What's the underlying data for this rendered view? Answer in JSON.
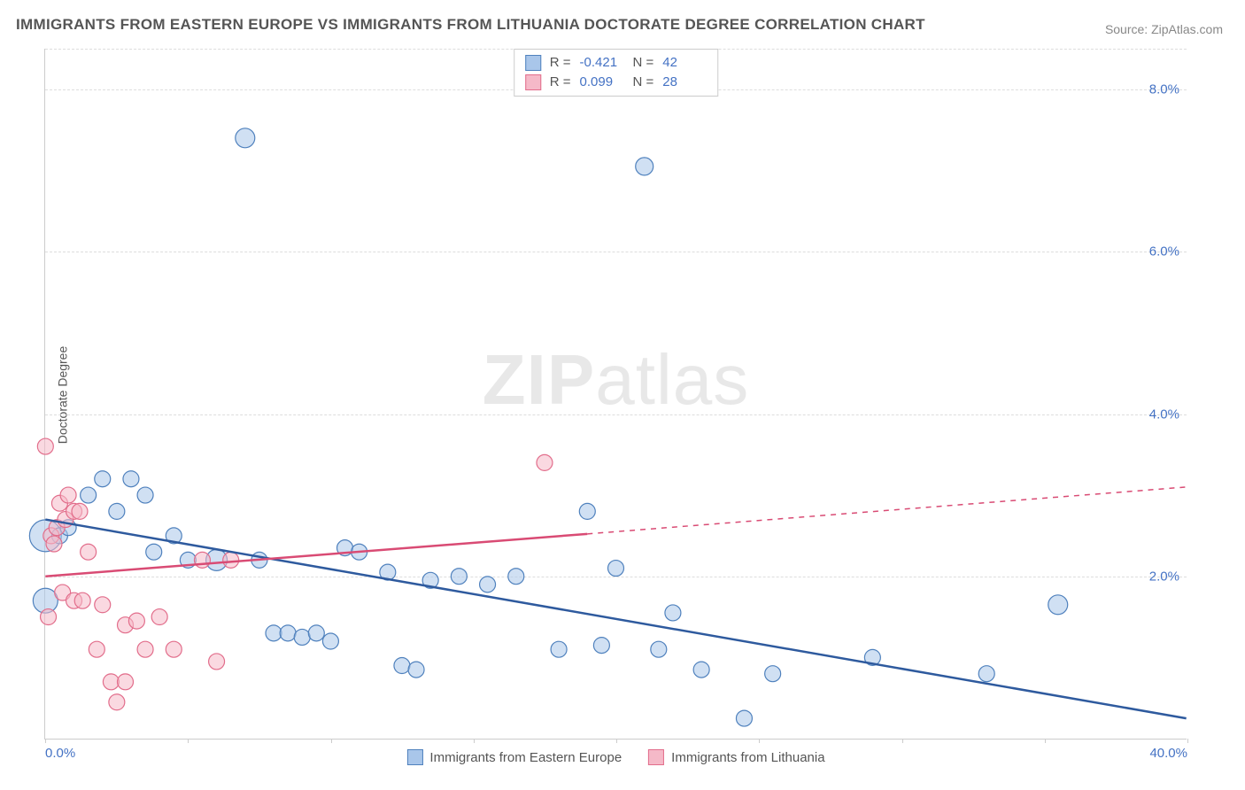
{
  "title": "IMMIGRANTS FROM EASTERN EUROPE VS IMMIGRANTS FROM LITHUANIA DOCTORATE DEGREE CORRELATION CHART",
  "source": "Source: ZipAtlas.com",
  "ylabel": "Doctorate Degree",
  "watermark_zip": "ZIP",
  "watermark_atlas": "atlas",
  "chart": {
    "type": "scatter",
    "background_color": "#ffffff",
    "grid_color": "#dddddd",
    "axis_color": "#cccccc",
    "tick_color": "#4472c4",
    "xlim": [
      0,
      40
    ],
    "ylim": [
      0,
      8.5
    ],
    "yticks": [
      2,
      4,
      6,
      8
    ],
    "ytick_labels": [
      "2.0%",
      "4.0%",
      "6.0%",
      "8.0%"
    ],
    "xtick_marks": [
      0,
      5,
      10,
      15,
      20,
      25,
      30,
      35,
      40
    ],
    "xtick_labels_shown": {
      "0": "0.0%",
      "40": "40.0%"
    },
    "series": [
      {
        "id": "eastern_europe",
        "label": "Immigrants from Eastern Europe",
        "fill": "#a9c6ea",
        "stroke": "#4f81bd",
        "line_color": "#2e5a9e",
        "marker_radius": 9,
        "fill_opacity": 0.55,
        "R": "-0.421",
        "N": "42",
        "trend": {
          "x1": 0,
          "y1": 2.7,
          "x2": 40,
          "y2": 0.25,
          "solid_until_x": 40
        },
        "points": [
          [
            0.0,
            2.5,
            18
          ],
          [
            0.0,
            1.7,
            14
          ],
          [
            0.5,
            2.5,
            9
          ],
          [
            0.8,
            2.6,
            9
          ],
          [
            1.5,
            3.0,
            9
          ],
          [
            2.0,
            3.2,
            9
          ],
          [
            2.5,
            2.8,
            9
          ],
          [
            3.0,
            3.2,
            9
          ],
          [
            3.5,
            3.0,
            9
          ],
          [
            3.8,
            2.3,
            9
          ],
          [
            4.5,
            2.5,
            9
          ],
          [
            5.0,
            2.2,
            9
          ],
          [
            6.0,
            2.2,
            12
          ],
          [
            7.0,
            7.4,
            11
          ],
          [
            7.5,
            2.2,
            9
          ],
          [
            8.0,
            1.3,
            9
          ],
          [
            8.5,
            1.3,
            9
          ],
          [
            9.0,
            1.25,
            9
          ],
          [
            9.5,
            1.3,
            9
          ],
          [
            10.0,
            1.2,
            9
          ],
          [
            10.5,
            2.35,
            9
          ],
          [
            11.0,
            2.3,
            9
          ],
          [
            12.0,
            2.05,
            9
          ],
          [
            12.5,
            0.9,
            9
          ],
          [
            13.0,
            0.85,
            9
          ],
          [
            13.5,
            1.95,
            9
          ],
          [
            14.5,
            2.0,
            9
          ],
          [
            15.5,
            1.9,
            9
          ],
          [
            16.5,
            2.0,
            9
          ],
          [
            18.0,
            1.1,
            9
          ],
          [
            19.0,
            2.8,
            9
          ],
          [
            19.5,
            1.15,
            9
          ],
          [
            20.0,
            2.1,
            9
          ],
          [
            21.0,
            7.05,
            10
          ],
          [
            21.5,
            1.1,
            9
          ],
          [
            22.0,
            1.55,
            9
          ],
          [
            23.0,
            0.85,
            9
          ],
          [
            24.5,
            0.25,
            9
          ],
          [
            25.5,
            0.8,
            9
          ],
          [
            33.0,
            0.8,
            9
          ],
          [
            35.5,
            1.65,
            11
          ],
          [
            29.0,
            1.0,
            9
          ]
        ]
      },
      {
        "id": "lithuania",
        "label": "Immigrants from Lithuania",
        "fill": "#f5b9c8",
        "stroke": "#e26d8b",
        "line_color": "#d94b74",
        "marker_radius": 9,
        "fill_opacity": 0.55,
        "R": "0.099",
        "N": "28",
        "trend": {
          "x1": 0,
          "y1": 2.0,
          "x2": 40,
          "y2": 3.1,
          "solid_until_x": 19
        },
        "points": [
          [
            0.0,
            3.6,
            9
          ],
          [
            0.2,
            2.5,
            9
          ],
          [
            0.3,
            2.4,
            9
          ],
          [
            0.4,
            2.6,
            9
          ],
          [
            0.5,
            2.9,
            9
          ],
          [
            0.6,
            1.8,
            9
          ],
          [
            0.7,
            2.7,
            9
          ],
          [
            0.8,
            3.0,
            9
          ],
          [
            1.0,
            2.8,
            9
          ],
          [
            1.2,
            2.8,
            9
          ],
          [
            1.0,
            1.7,
            9
          ],
          [
            1.3,
            1.7,
            9
          ],
          [
            1.5,
            2.3,
            9
          ],
          [
            1.8,
            1.1,
            9
          ],
          [
            2.0,
            1.65,
            9
          ],
          [
            2.3,
            0.7,
            9
          ],
          [
            2.5,
            0.45,
            9
          ],
          [
            2.8,
            1.4,
            9
          ],
          [
            2.8,
            0.7,
            9
          ],
          [
            3.2,
            1.45,
            9
          ],
          [
            3.5,
            1.1,
            9
          ],
          [
            4.0,
            1.5,
            9
          ],
          [
            4.5,
            1.1,
            9
          ],
          [
            5.5,
            2.2,
            9
          ],
          [
            6.0,
            0.95,
            9
          ],
          [
            6.5,
            2.2,
            9
          ],
          [
            17.5,
            3.4,
            9
          ],
          [
            0.1,
            1.5,
            9
          ]
        ]
      }
    ]
  },
  "legend_stats": {
    "R_label": "R =",
    "N_label": "N ="
  }
}
